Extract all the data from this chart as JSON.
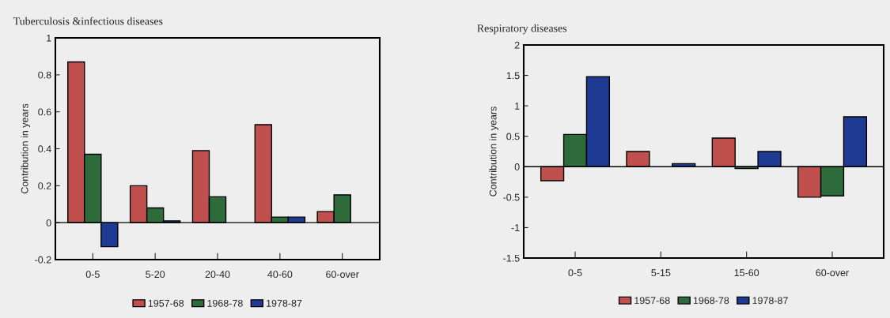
{
  "chart_data": [
    {
      "type": "bar",
      "title": "Tuberculosis &infectious diseases",
      "ylabel": "Contribution in years",
      "categories": [
        "0-5",
        "5-20",
        "20-40",
        "40-60",
        "60-over"
      ],
      "series": [
        {
          "name": "1957-68",
          "color": "#c0504d",
          "values": [
            0.87,
            0.2,
            0.39,
            0.53,
            0.06
          ]
        },
        {
          "name": "1968-78",
          "color": "#2e6b3a",
          "values": [
            0.37,
            0.08,
            0.14,
            0.03,
            0.15
          ]
        },
        {
          "name": "1978-87",
          "color": "#1f3a93",
          "values": [
            -0.13,
            0.01,
            null,
            0.03,
            null
          ]
        }
      ],
      "ylim": [
        -0.2,
        1
      ],
      "yticks": [
        -0.2,
        0,
        0.2,
        0.4,
        0.6,
        0.8,
        1
      ],
      "legend": "bottom",
      "ref_lines": [
        {
          "axis": "y",
          "value": 0,
          "color": "#000000"
        }
      ]
    },
    {
      "type": "bar",
      "title": "Respiratory diseases",
      "ylabel": "Contribution in years",
      "categories": [
        "0-5",
        "5-15",
        "15-60",
        "60-over"
      ],
      "series": [
        {
          "name": "1957-68",
          "color": "#c0504d",
          "values": [
            -0.23,
            0.25,
            0.47,
            -0.5
          ]
        },
        {
          "name": "1968-78",
          "color": "#2e6b3a",
          "values": [
            0.53,
            null,
            -0.03,
            -0.48
          ]
        },
        {
          "name": "1978-87",
          "color": "#1f3a93",
          "values": [
            1.48,
            0.05,
            0.25,
            0.82
          ]
        }
      ],
      "ylim": [
        -1.5,
        2
      ],
      "yticks": [
        -1.5,
        -1,
        -0.5,
        0,
        0.5,
        1,
        1.5,
        2
      ],
      "legend": "bottom",
      "ref_lines": [
        {
          "axis": "y",
          "value": 0,
          "color": "#000000"
        }
      ]
    }
  ]
}
